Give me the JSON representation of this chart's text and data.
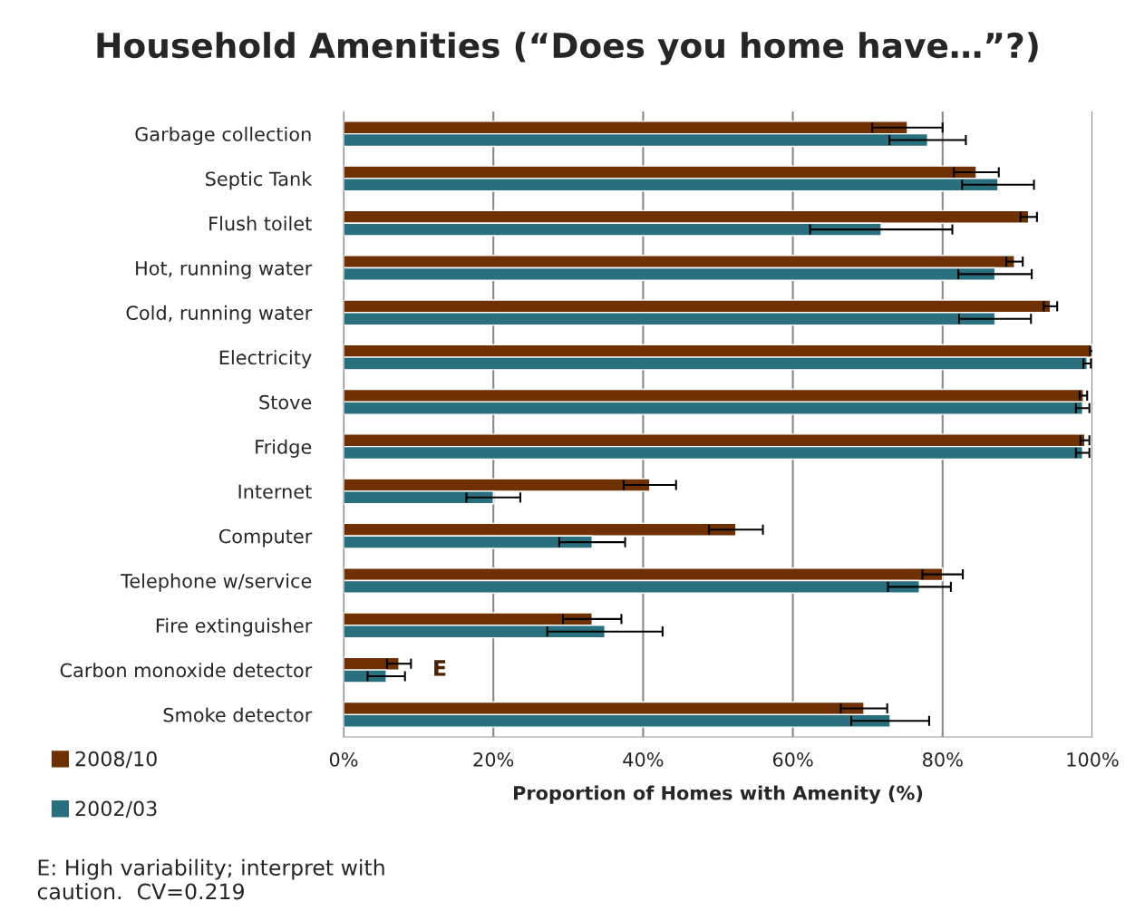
{
  "chart_data": {
    "type": "bar",
    "orientation": "horizontal",
    "title": "Household Amenities (“Does you home have…”?)",
    "xlabel": "Proportion of Homes with Amenity (%)",
    "categories": [
      "Garbage collection",
      "Septic Tank",
      "Flush toilet",
      "Hot, running water",
      "Cold, running water",
      "Electricity",
      "Stove",
      "Fridge",
      "Internet",
      "Computer",
      "Telephone w/service",
      "Fire extinguisher",
      "Carbon monoxide detector",
      "Smoke detector"
    ],
    "series": [
      {
        "name": "2008/10",
        "color": "#6f3104",
        "values": [
          75.3,
          84.5,
          91.5,
          89.6,
          94.4,
          99.9,
          98.8,
          99.0,
          40.9,
          52.4,
          80.0,
          33.2,
          7.4,
          69.5
        ],
        "errors": [
          4.7,
          3.0,
          1.1,
          1.1,
          0.9,
          0.2,
          0.5,
          0.6,
          3.5,
          3.6,
          2.7,
          3.9,
          1.6,
          3.1
        ]
      },
      {
        "name": "2002/03",
        "color": "#2a6f7e",
        "values": [
          78.0,
          87.4,
          71.8,
          87.0,
          87.0,
          99.3,
          98.7,
          98.7,
          20.0,
          33.2,
          76.9,
          34.9,
          5.7,
          73.0
        ],
        "errors": [
          5.1,
          4.8,
          9.5,
          4.9,
          4.8,
          0.5,
          0.9,
          0.9,
          3.6,
          4.4,
          4.2,
          7.7,
          2.5,
          5.2
        ]
      }
    ],
    "xlim": [
      0,
      100
    ],
    "xticks": [
      {
        "value": 0,
        "label": "0%"
      },
      {
        "value": 20,
        "label": "20%"
      },
      {
        "value": 40,
        "label": "40%"
      },
      {
        "value": 60,
        "label": "60%"
      },
      {
        "value": 80,
        "label": "80%"
      },
      {
        "value": 100,
        "label": "100%"
      }
    ],
    "grid": "x",
    "legend": "bottom left",
    "annotations": [
      "E",
      "E: High variability; interpret with caution.  CV=0.219"
    ]
  }
}
